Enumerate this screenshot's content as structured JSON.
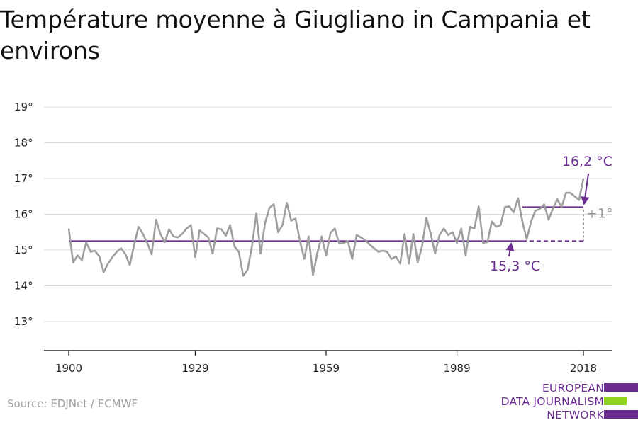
{
  "title": "Température moyenne à Giugliano in Campania et environs",
  "source": "Source: EDJNet / ECMWF",
  "logo": {
    "line1": "EUROPEAN",
    "line2": "DATA JOURNALISM",
    "line3": "NETWORK",
    "colors": [
      "#6b2c91",
      "#8fd31f",
      "#6b2c91"
    ]
  },
  "colors": {
    "series": "#9e9e9e",
    "accent": "#6b2c91",
    "grid": "#dcdcdc",
    "axis": "#222222"
  },
  "chart_data": {
    "type": "line",
    "title": "Température moyenne à Giugliano in Campania et environs",
    "xlabel": "",
    "ylabel": "",
    "xlim": [
      1900,
      2018
    ],
    "ylim": [
      12.2,
      19.4
    ],
    "x_ticks": [
      1900,
      1929,
      1959,
      1989,
      2018
    ],
    "x_tick_labels": [
      "1900",
      "1929",
      "1959",
      "1989",
      "2018"
    ],
    "y_ticks": [
      13,
      14,
      15,
      16,
      17,
      18,
      19
    ],
    "y_tick_labels": [
      "13°",
      "14°",
      "15°",
      "16°",
      "17°",
      "18°",
      "19°"
    ],
    "grid": true,
    "x": [
      1900,
      1901,
      1902,
      1903,
      1904,
      1905,
      1906,
      1907,
      1908,
      1909,
      1910,
      1911,
      1912,
      1913,
      1914,
      1915,
      1916,
      1917,
      1918,
      1919,
      1920,
      1921,
      1922,
      1923,
      1924,
      1925,
      1926,
      1927,
      1928,
      1929,
      1930,
      1931,
      1932,
      1933,
      1934,
      1935,
      1936,
      1937,
      1938,
      1939,
      1940,
      1941,
      1942,
      1943,
      1944,
      1945,
      1946,
      1947,
      1948,
      1949,
      1950,
      1951,
      1952,
      1953,
      1954,
      1955,
      1956,
      1957,
      1958,
      1959,
      1960,
      1961,
      1962,
      1963,
      1964,
      1965,
      1966,
      1967,
      1968,
      1969,
      1970,
      1971,
      1972,
      1973,
      1974,
      1975,
      1976,
      1977,
      1978,
      1979,
      1980,
      1981,
      1982,
      1983,
      1984,
      1985,
      1986,
      1987,
      1988,
      1989,
      1990,
      1991,
      1992,
      1993,
      1994,
      1995,
      1996,
      1997,
      1998,
      1999,
      2000,
      2001,
      2002,
      2003,
      2004,
      2005,
      2006,
      2007,
      2008,
      2009,
      2010,
      2011,
      2012,
      2013,
      2014,
      2015,
      2016,
      2017,
      2018
    ],
    "series": [
      {
        "values": [
          15.6,
          14.65,
          14.85,
          14.72,
          15.22,
          14.95,
          14.98,
          14.82,
          14.38,
          14.62,
          14.8,
          14.95,
          15.05,
          14.88,
          14.58,
          15.15,
          15.65,
          15.45,
          15.2,
          14.88,
          15.85,
          15.45,
          15.22,
          15.58,
          15.38,
          15.35,
          15.45,
          15.6,
          15.7,
          14.8,
          15.55,
          15.45,
          15.35,
          14.9,
          15.6,
          15.58,
          15.4,
          15.7,
          15.1,
          14.95,
          14.28,
          14.45,
          15.1,
          16.02,
          14.9,
          15.75,
          16.18,
          16.28,
          15.5,
          15.7,
          16.32,
          15.82,
          15.88,
          15.25,
          14.75,
          15.38,
          14.3,
          14.92,
          15.38,
          14.85,
          15.48,
          15.6,
          15.18,
          15.2,
          15.25,
          14.75,
          15.42,
          15.35,
          15.28,
          15.15,
          15.05,
          14.95,
          14.98,
          14.95,
          14.75,
          14.82,
          14.62,
          15.45,
          14.62,
          15.45,
          14.65,
          15.1,
          15.9,
          15.45,
          14.9,
          15.42,
          15.6,
          15.42,
          15.5,
          15.2,
          15.6,
          14.85,
          15.65,
          15.6,
          16.22,
          15.2,
          15.22,
          15.8,
          15.65,
          15.7,
          16.2,
          16.22,
          16.05,
          16.45,
          15.8,
          15.3,
          15.8,
          16.1,
          16.15,
          16.28,
          15.85,
          16.15,
          16.42,
          16.2,
          16.6,
          16.6,
          16.5,
          16.4,
          17.0
        ]
      }
    ],
    "reference_lines": [
      {
        "x_start": 1900,
        "x_end": 2004,
        "x_dashed_end": 2018,
        "y": 15.25,
        "label": "15,3 °C"
      },
      {
        "x_start": 2004,
        "x_end": 2018,
        "y": 16.2,
        "label": "16,2 °C"
      }
    ],
    "difference_label": "+1°"
  }
}
